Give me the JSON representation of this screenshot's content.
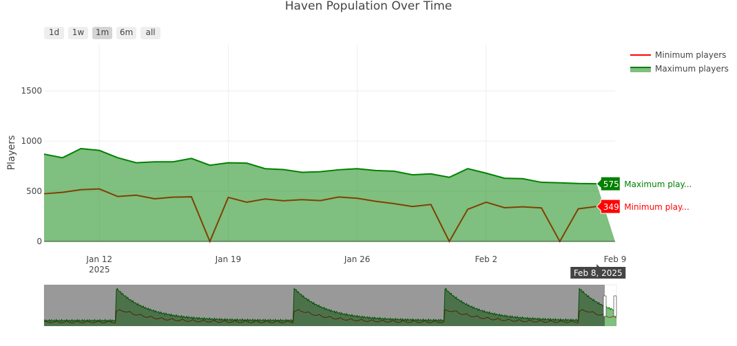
{
  "chart_data": {
    "type": "area",
    "title": "Haven Population Over Time",
    "ylabel": "Players",
    "xlabel": "",
    "ylim": [
      0,
      1960
    ],
    "yticks": [
      0,
      500,
      1000,
      1500
    ],
    "xlim": [
      "2025-01-09",
      "2025-02-09"
    ],
    "xticks": [
      {
        "date": "2025-01-12",
        "label": "Jan 12",
        "sublabel": "2025"
      },
      {
        "date": "2025-01-19",
        "label": "Jan 19"
      },
      {
        "date": "2025-01-26",
        "label": "Jan 26"
      },
      {
        "date": "2025-02-02",
        "label": "Feb 2"
      },
      {
        "date": "2025-02-09",
        "label": "Feb 9"
      }
    ],
    "grid": true,
    "legend_placement": "top-right",
    "x": [
      "2025-01-09",
      "2025-01-10",
      "2025-01-11",
      "2025-01-12",
      "2025-01-13",
      "2025-01-14",
      "2025-01-15",
      "2025-01-16",
      "2025-01-17",
      "2025-01-18",
      "2025-01-19",
      "2025-01-20",
      "2025-01-21",
      "2025-01-22",
      "2025-01-23",
      "2025-01-24",
      "2025-01-25",
      "2025-01-26",
      "2025-01-27",
      "2025-01-28",
      "2025-01-29",
      "2025-01-30",
      "2025-01-31",
      "2025-02-01",
      "2025-02-02",
      "2025-02-03",
      "2025-02-04",
      "2025-02-05",
      "2025-02-06",
      "2025-02-07",
      "2025-02-08"
    ],
    "series": [
      {
        "name": "Minimum players",
        "color": "#ff0000",
        "type": "line",
        "values": [
          475,
          489,
          516,
          523,
          448,
          461,
          425,
          441,
          445,
          0,
          439,
          391,
          423,
          405,
          416,
          407,
          443,
          430,
          400,
          377,
          348,
          368,
          0,
          320,
          391,
          336,
          345,
          334,
          0,
          325,
          349
        ]
      },
      {
        "name": "Maximum players",
        "color": "#008000",
        "type": "area",
        "fill": "rgba(0,128,0,0.5)",
        "values": [
          870,
          834,
          925,
          907,
          834,
          784,
          793,
          793,
          827,
          759,
          784,
          780,
          725,
          716,
          689,
          695,
          714,
          725,
          707,
          700,
          664,
          673,
          639,
          725,
          680,
          630,
          625,
          589,
          584,
          577,
          575
        ]
      }
    ],
    "hover": {
      "date_label": "Feb 8, 2025",
      "max": {
        "value": "575",
        "name": "Maximum play..."
      },
      "min": {
        "value": "349",
        "name": "Minimum play..."
      }
    }
  },
  "range_selector": {
    "buttons": [
      "1d",
      "1w",
      "1m",
      "6m",
      "all"
    ],
    "active": "1m"
  }
}
